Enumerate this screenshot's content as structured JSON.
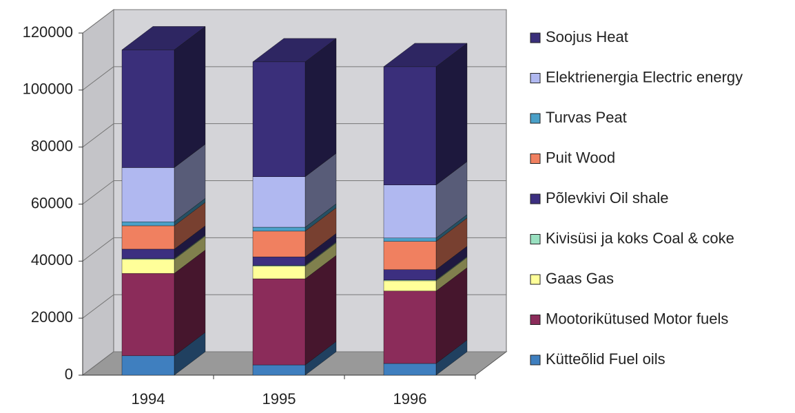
{
  "chart_data": {
    "type": "bar3d_stacked",
    "categories": [
      "1994",
      "1995",
      "1996"
    ],
    "series": [
      {
        "name": "Kütteõlid Fuel oils",
        "color": "#3f7fbf",
        "values": [
          6800,
          3600,
          4100
        ]
      },
      {
        "name": "Mootorikütused Motor fuels",
        "color": "#8b2c5a",
        "values": [
          28900,
          30200,
          25400
        ]
      },
      {
        "name": "Gaas Gas",
        "color": "#ffff99",
        "values": [
          4900,
          4400,
          3600
        ]
      },
      {
        "name": "Kivisüsi ja koks Coal & coke",
        "color": "#99e0c0",
        "values": [
          300,
          300,
          300
        ]
      },
      {
        "name": "Põlevkivi Oil shale",
        "color": "#3c2f80",
        "values": [
          3300,
          3000,
          3600
        ]
      },
      {
        "name": "Puit Wood",
        "color": "#f08060",
        "values": [
          8200,
          9000,
          9900
        ]
      },
      {
        "name": "Turvas Peat",
        "color": "#4aa0c8",
        "values": [
          1400,
          1400,
          1200
        ]
      },
      {
        "name": "Elektrienergia Electric energy",
        "color": "#b0b8f0",
        "values": [
          19000,
          17700,
          18600
        ]
      },
      {
        "name": "Soojus Heat",
        "color": "#3a2f7a",
        "values": [
          41300,
          40300,
          41500
        ]
      }
    ],
    "ylim": [
      0,
      120000
    ],
    "yticks": [
      0,
      20000,
      40000,
      60000,
      80000,
      100000,
      120000
    ],
    "grid": true,
    "legend": "right"
  }
}
